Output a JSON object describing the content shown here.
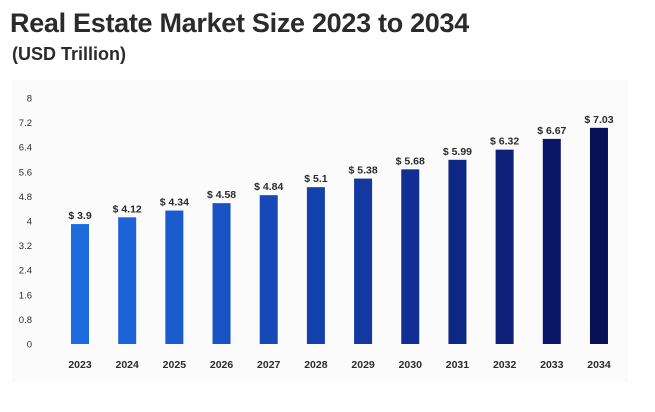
{
  "chart_data": {
    "type": "bar",
    "title": "Real Estate Market Size 2023 to 2034",
    "subtitle": "(USD Trillion)",
    "categories": [
      "2023",
      "2024",
      "2025",
      "2026",
      "2027",
      "2028",
      "2029",
      "2030",
      "2031",
      "2032",
      "2033",
      "2034"
    ],
    "values": [
      3.9,
      4.12,
      4.34,
      4.58,
      4.84,
      5.1,
      5.38,
      5.68,
      5.99,
      6.32,
      6.67,
      7.03
    ],
    "data_labels": [
      "$ 3.9",
      "$ 4.12",
      "$ 4.34",
      "$ 4.58",
      "$ 4.84",
      "$ 5.1",
      "$ 5.38",
      "$ 5.68",
      "$ 5.99",
      "$ 6.32",
      "$ 6.67",
      "$ 7.03"
    ],
    "y_ticks": [
      "0",
      "0.8",
      "1.6",
      "2.4",
      "3.2",
      "4",
      "4.8",
      "5.6",
      "6.4",
      "7.2",
      "8"
    ],
    "ylim": [
      0,
      8
    ],
    "xlabel": "",
    "ylabel": "",
    "grid": false,
    "legend": "none",
    "bar_colors": [
      "#1c6cde",
      "#1b63d6",
      "#1a5bcd",
      "#1852c3",
      "#1649b8",
      "#1440ac",
      "#13389f",
      "#112f92",
      "#0f2784",
      "#0d1f76",
      "#0a1767",
      "#081058"
    ]
  }
}
